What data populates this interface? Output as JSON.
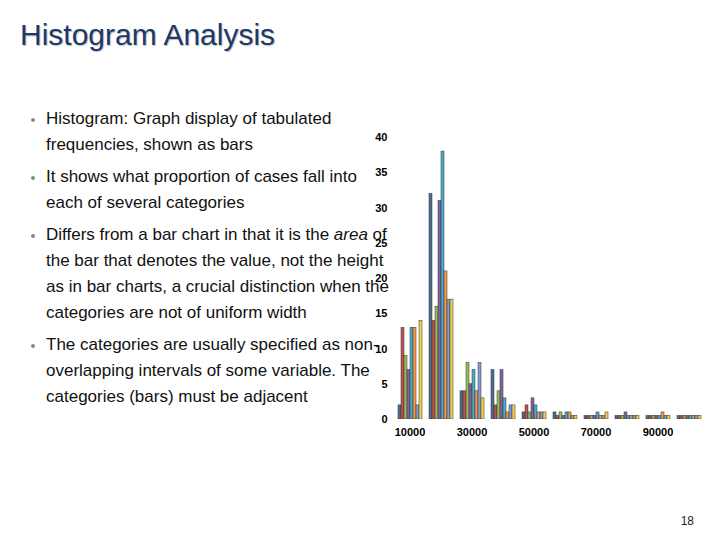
{
  "slide": {
    "title": "Histogram Analysis",
    "bullets": [
      "Histogram: Graph display of tabulated frequencies, shown as bars",
      "It shows what proportion of cases fall into each of several categories",
      [
        {
          "text": "Differs from a bar chart in that it is the "
        },
        {
          "text": "area",
          "italic": true
        },
        {
          "text": " of the bar that denotes the value, not the height as in bar charts, a crucial distinction when the categories are not of uniform width"
        }
      ],
      "The categories are usually specified as non-overlapping intervals of some variable. The categories (bars) must be adjacent"
    ],
    "page_number": "18"
  },
  "chart_data": {
    "type": "bar",
    "categories": [
      10000,
      null,
      30000,
      null,
      50000,
      null,
      70000,
      null,
      90000,
      null
    ],
    "series": [
      {
        "color": "#4f6d8f",
        "values": [
          2,
          32,
          4,
          7,
          1,
          1,
          0.5,
          0.5,
          0.5,
          0.5
        ]
      },
      {
        "color": "#c0504d",
        "values": [
          13,
          14,
          4,
          2,
          2,
          0.5,
          0.5,
          0.5,
          0.5,
          0.5
        ]
      },
      {
        "color": "#9bbb59",
        "values": [
          9,
          16,
          8,
          4,
          1,
          1,
          0.5,
          0.5,
          0.5,
          0.5
        ]
      },
      {
        "color": "#8064a2",
        "values": [
          7,
          31,
          5,
          7,
          3,
          0.5,
          0.5,
          1,
          0.5,
          0.5
        ]
      },
      {
        "color": "#4bacc6",
        "values": [
          13,
          38,
          7,
          3,
          2,
          1,
          1,
          0.5,
          0.5,
          0.5
        ]
      },
      {
        "color": "#f79646",
        "values": [
          13,
          21,
          4,
          1,
          1,
          1,
          0.5,
          0.5,
          1,
          0.5
        ]
      },
      {
        "color": "#7f9fd0",
        "values": [
          2,
          17,
          8,
          2,
          1,
          0.5,
          0.5,
          0.5,
          0.5,
          0.5
        ]
      },
      {
        "color": "#f2d04c",
        "values": [
          14,
          17,
          3,
          2,
          1,
          0.5,
          1,
          0.5,
          0.5,
          0.5
        ]
      }
    ],
    "ylim": [
      0,
      40
    ],
    "yticks": [
      0,
      5,
      10,
      15,
      20,
      25,
      30,
      35,
      40
    ],
    "grid": false
  }
}
